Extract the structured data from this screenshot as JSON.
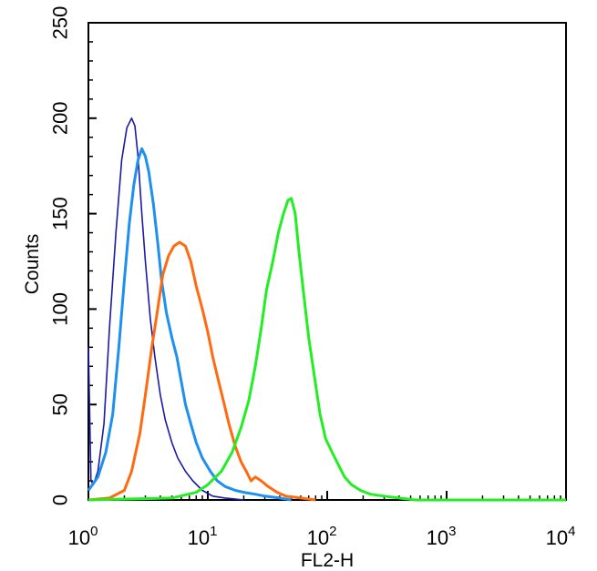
{
  "chart_data": {
    "type": "line",
    "title": "",
    "xlabel": "FL2-H",
    "ylabel": "Counts",
    "x_scale": "log",
    "xlim": [
      1,
      10000
    ],
    "ylim": [
      0,
      250
    ],
    "grid": false,
    "x_ticks": [
      {
        "value": 1,
        "base": "10",
        "exp": "0"
      },
      {
        "value": 10,
        "base": "10",
        "exp": "1"
      },
      {
        "value": 100,
        "base": "10",
        "exp": "2"
      },
      {
        "value": 1000,
        "base": "10",
        "exp": "3"
      },
      {
        "value": 10000,
        "base": "10",
        "exp": "4"
      }
    ],
    "y_ticks": [
      "0",
      "50",
      "100",
      "150",
      "200",
      "250"
    ],
    "series": [
      {
        "color": "#1a1aa6",
        "width": 1.6,
        "x": [
          1.0,
          1.05,
          1.1,
          1.2,
          1.35,
          1.5,
          1.7,
          1.9,
          2.1,
          2.3,
          2.45,
          2.6,
          2.8,
          3.0,
          3.3,
          3.6,
          4.0,
          4.4,
          5.0,
          5.6,
          6.5,
          7.5,
          9.0,
          11,
          14,
          20
        ],
        "y": [
          80,
          10,
          8,
          15,
          40,
          90,
          140,
          178,
          195,
          200,
          196,
          180,
          150,
          125,
          95,
          75,
          55,
          42,
          30,
          22,
          15,
          10,
          5,
          2,
          1,
          0
        ]
      },
      {
        "color": "#1e90ee",
        "width": 3,
        "x": [
          1.0,
          1.2,
          1.4,
          1.6,
          1.8,
          2.0,
          2.2,
          2.4,
          2.6,
          2.8,
          3.0,
          3.2,
          3.5,
          3.8,
          4.1,
          4.5,
          5.0,
          5.5,
          6.0,
          6.5,
          7.2,
          8.0,
          9.0,
          10.5,
          12,
          14,
          17,
          20,
          25,
          30,
          40,
          50
        ],
        "y": [
          5,
          12,
          25,
          45,
          80,
          115,
          145,
          165,
          178,
          184,
          180,
          172,
          155,
          135,
          115,
          98,
          85,
          75,
          62,
          50,
          40,
          30,
          22,
          15,
          10,
          7,
          5,
          4,
          3,
          2,
          1,
          0
        ]
      },
      {
        "color": "#ff6a10",
        "width": 3,
        "x": [
          1.0,
          1.5,
          2.0,
          2.3,
          2.7,
          3.0,
          3.4,
          3.8,
          4.2,
          4.7,
          5.2,
          5.8,
          6.5,
          7.2,
          8.0,
          9.0,
          10,
          11,
          12,
          13.5,
          15,
          17,
          19,
          21,
          23,
          25,
          28,
          32,
          38,
          45,
          60,
          80
        ],
        "y": [
          0,
          1,
          5,
          15,
          35,
          55,
          80,
          100,
          118,
          128,
          133,
          135,
          133,
          125,
          112,
          100,
          88,
          75,
          65,
          52,
          40,
          28,
          20,
          15,
          10,
          12,
          10,
          7,
          4,
          2,
          1,
          0
        ]
      },
      {
        "color": "#22ee22",
        "width": 3,
        "x": [
          1.0,
          5,
          8,
          10,
          13,
          16,
          19,
          22,
          25,
          28,
          31,
          35,
          39,
          43,
          47,
          50,
          54,
          58,
          63,
          70,
          78,
          87,
          97,
          110,
          125,
          140,
          160,
          190,
          230,
          300,
          400,
          550,
          700,
          1000,
          10000
        ],
        "y": [
          0,
          1,
          4,
          8,
          15,
          25,
          38,
          52,
          70,
          90,
          110,
          125,
          140,
          150,
          157,
          158,
          150,
          130,
          110,
          85,
          65,
          45,
          32,
          25,
          18,
          12,
          8,
          5,
          3,
          2,
          1,
          0,
          0,
          0,
          0
        ]
      }
    ]
  }
}
